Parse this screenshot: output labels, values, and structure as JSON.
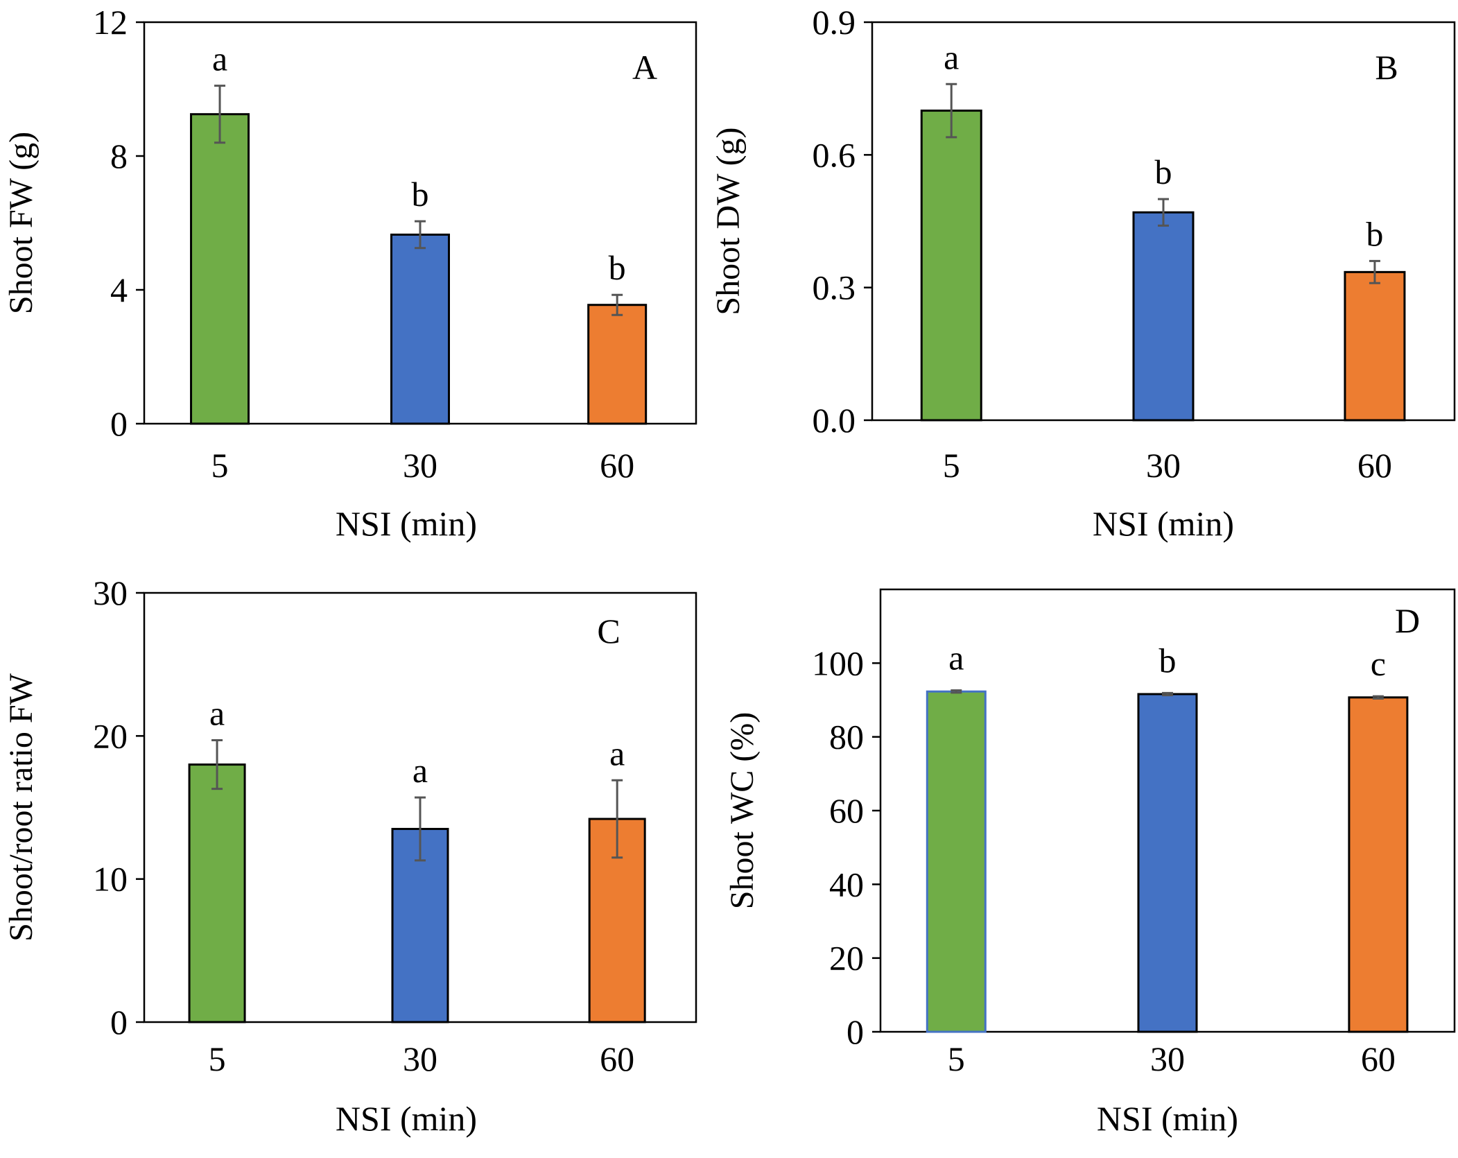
{
  "chart_data": [
    {
      "type": "bar",
      "panel_label": "A",
      "categories": [
        "5",
        "30",
        "60"
      ],
      "values": [
        9.25,
        5.65,
        3.55
      ],
      "errors": [
        0.85,
        0.4,
        0.3
      ],
      "significance": [
        "a",
        "b",
        "b"
      ],
      "colors": [
        "#70ad47",
        "#4472c4",
        "#ed7d31"
      ],
      "xlabel": "NSI (min)",
      "ylabel": "Shoot FW (g)",
      "ylim": [
        0,
        12
      ],
      "yticks": [
        "0",
        "4",
        "8",
        "12"
      ],
      "ytick_values": [
        0,
        4,
        8,
        12
      ],
      "legend": "none",
      "grid": false
    },
    {
      "type": "bar",
      "panel_label": "B",
      "categories": [
        "5",
        "30",
        "60"
      ],
      "values": [
        0.7,
        0.47,
        0.335
      ],
      "errors": [
        0.06,
        0.03,
        0.025
      ],
      "significance": [
        "a",
        "b",
        "b"
      ],
      "colors": [
        "#70ad47",
        "#4472c4",
        "#ed7d31"
      ],
      "xlabel": "NSI (min)",
      "ylabel": "Shoot DW (g)",
      "ylim": [
        0,
        0.9
      ],
      "yticks": [
        "0.0",
        "0.3",
        "0.6",
        "0.9"
      ],
      "ytick_values": [
        0,
        0.3,
        0.6,
        0.9
      ],
      "legend": "none",
      "grid": false
    },
    {
      "type": "bar",
      "panel_label": "C",
      "categories": [
        "5",
        "30",
        "60"
      ],
      "values": [
        18.0,
        13.5,
        14.2
      ],
      "errors": [
        1.7,
        2.2,
        2.7
      ],
      "significance": [
        "a",
        "a",
        "a"
      ],
      "colors": [
        "#70ad47",
        "#4472c4",
        "#ed7d31"
      ],
      "xlabel": "NSI (min)",
      "ylabel": "Shoot/root ratio FW",
      "ylim": [
        0,
        30
      ],
      "yticks": [
        "0",
        "10",
        "20",
        "30"
      ],
      "ytick_values": [
        0,
        10,
        20,
        30
      ],
      "legend": "none",
      "grid": false
    },
    {
      "type": "bar",
      "panel_label": "D",
      "categories": [
        "5",
        "30",
        "60"
      ],
      "values": [
        92.3,
        91.6,
        90.7
      ],
      "errors": [
        0.3,
        0.3,
        0.3
      ],
      "significance": [
        "a",
        "b",
        "c"
      ],
      "colors": [
        "#70ad47",
        "#4472c4",
        "#ed7d31"
      ],
      "xlabel": "NSI (min)",
      "ylabel": "Shoot WC (%)",
      "ylim": [
        0,
        120
      ],
      "yticks": [
        "0",
        "20",
        "40",
        "60",
        "80",
        "100"
      ],
      "ytick_values": [
        0,
        20,
        40,
        60,
        80,
        100
      ],
      "legend": "none",
      "grid": false
    }
  ]
}
